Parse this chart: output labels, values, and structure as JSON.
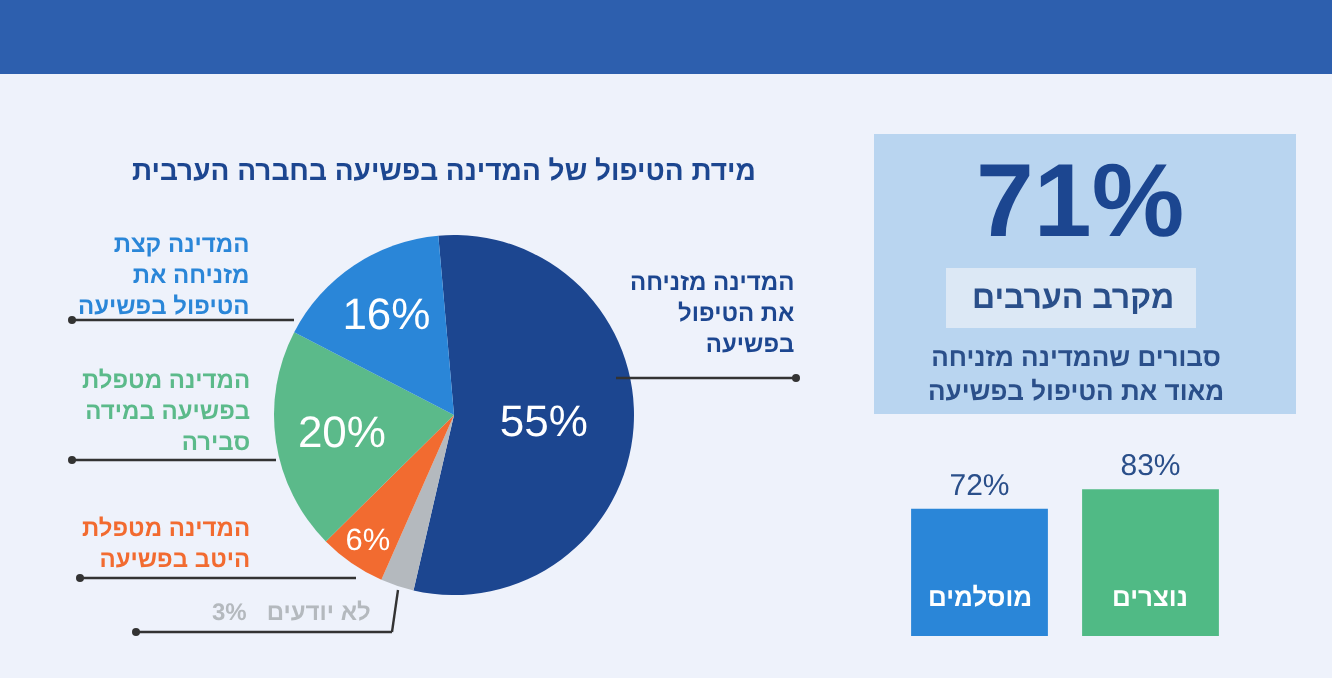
{
  "chart_data": [
    {
      "type": "pie",
      "title": "מידת הטיפול של המדינה בפשיעה בחברה הערבית",
      "categories": [
        "המדינה מזניחה את הטיפול בפשיעה",
        "לא יודעים",
        "המדינה מטפלת היטב בפשיעה",
        "המדינה מטפלת בפשיעה במידה סבירה",
        "המדינה קצת מזניחה את הטיפול בפשיעה"
      ],
      "values": [
        55,
        3,
        6,
        20,
        16
      ],
      "colors": [
        "#1c4690",
        "#b4b9be",
        "#f26b30",
        "#5bba8a",
        "#2a86d8"
      ],
      "value_labels": [
        "55%",
        "3%",
        "6%",
        "20%",
        "16%"
      ]
    },
    {
      "type": "other",
      "title": "71%",
      "subtitle": "מקרב הערבים",
      "annotations": [
        "סבורים שהמדינה מזניחה מאוד את הטיפול בפשיעה"
      ]
    },
    {
      "type": "bar",
      "categories": [
        "מוסלמים",
        "נוצרים"
      ],
      "values": [
        72,
        83
      ],
      "colors": [
        "#2a86d8",
        "#50ba85"
      ],
      "value_labels": [
        "72%",
        "83%"
      ]
    }
  ]
}
